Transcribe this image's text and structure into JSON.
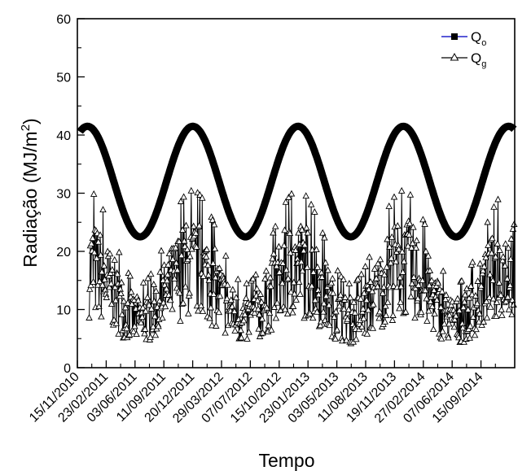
{
  "chart_data": {
    "type": "line",
    "title": "",
    "xlabel": "Tempo",
    "ylabel": "Radiação (MJ/m²)",
    "ylabel_parts": {
      "main": "Radiação (MJ/m",
      "sup": "2",
      "close": ")"
    },
    "ylim": [
      0,
      60
    ],
    "yticks": [
      "0",
      "10",
      "20",
      "30",
      "40",
      "50",
      "60"
    ],
    "x_range": [
      "2010-11-15",
      "2015-01-10"
    ],
    "x_tick_labels": [
      "15/11/2010",
      "23/02/2011",
      "03/06/2011",
      "11/09/2011",
      "20/12/2011",
      "29/03/2012",
      "07/07/2012",
      "15/10/2012",
      "23/01/2013",
      "03/05/2013",
      "11/08/2013",
      "19/11/2013",
      "27/02/2014",
      "07/06/2014",
      "15/09/2014"
    ],
    "grid": false,
    "legend_position": "top-right",
    "series": [
      {
        "name": "Qo",
        "legend_label": "Q",
        "legend_subscript": "o",
        "color": "#000000",
        "legend_line_color": "#2222cc",
        "marker": "square-filled",
        "start_date": "2010-11-24",
        "end_date": "2015-01-10",
        "max": 41.5,
        "min": 22.5,
        "maxima_dates": [
          "2010-12-20",
          "2011-12-20",
          "2012-12-20",
          "2013-12-20",
          "2014-12-20"
        ],
        "minima_dates": [
          "2011-06-20",
          "2012-06-20",
          "2013-06-20",
          "2014-06-20"
        ]
      },
      {
        "name": "Qg",
        "legend_label": "Q",
        "legend_subscript": "g",
        "color": "#000000",
        "marker": "triangle-open",
        "start_date": "2010-12-26",
        "end_date": "2015-01-08",
        "peak_value": 31.5,
        "trough_value": 1.5,
        "trough_dates": [
          "2011-06-20",
          "2012-06-20",
          "2013-06-20",
          "2014-06-20"
        ]
      }
    ]
  }
}
